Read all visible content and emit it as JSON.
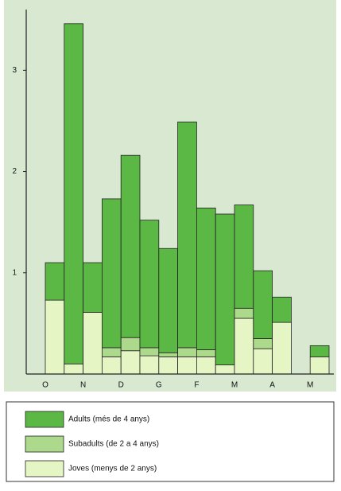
{
  "chart_data": {
    "type": "stacked_bar",
    "categories": [
      "O",
      null,
      "N",
      null,
      "D",
      null,
      "G",
      null,
      "F",
      null,
      "M",
      null,
      "A",
      null,
      "M"
    ],
    "series": [
      {
        "name": "Joves (menys de 2 anys)",
        "color": "#e6f5c4",
        "values": [
          0.73,
          0.1,
          0.61,
          0.17,
          0.23,
          0.18,
          0.17,
          0.17,
          0.17,
          0.09,
          0.55,
          0.25,
          0.51,
          0,
          0.17
        ]
      },
      {
        "name": "Subadults (de 2 a 4 anys)",
        "color": "#acd98c",
        "values": [
          0,
          0,
          0,
          0.09,
          0.13,
          0.08,
          0.04,
          0.09,
          0.07,
          0,
          0.1,
          0.1,
          0,
          0,
          0
        ]
      },
      {
        "name": "Adults (més de 4 anys)",
        "color": "#5cb845",
        "values": [
          0.37,
          3.36,
          0.49,
          1.47,
          1.8,
          1.26,
          1.03,
          2.23,
          1.4,
          1.49,
          1.02,
          0.67,
          0.25,
          0,
          0.11
        ]
      }
    ],
    "ylim": [
      0,
      3.6
    ],
    "yticks": [
      1,
      2,
      3
    ],
    "legend": "bottom"
  }
}
